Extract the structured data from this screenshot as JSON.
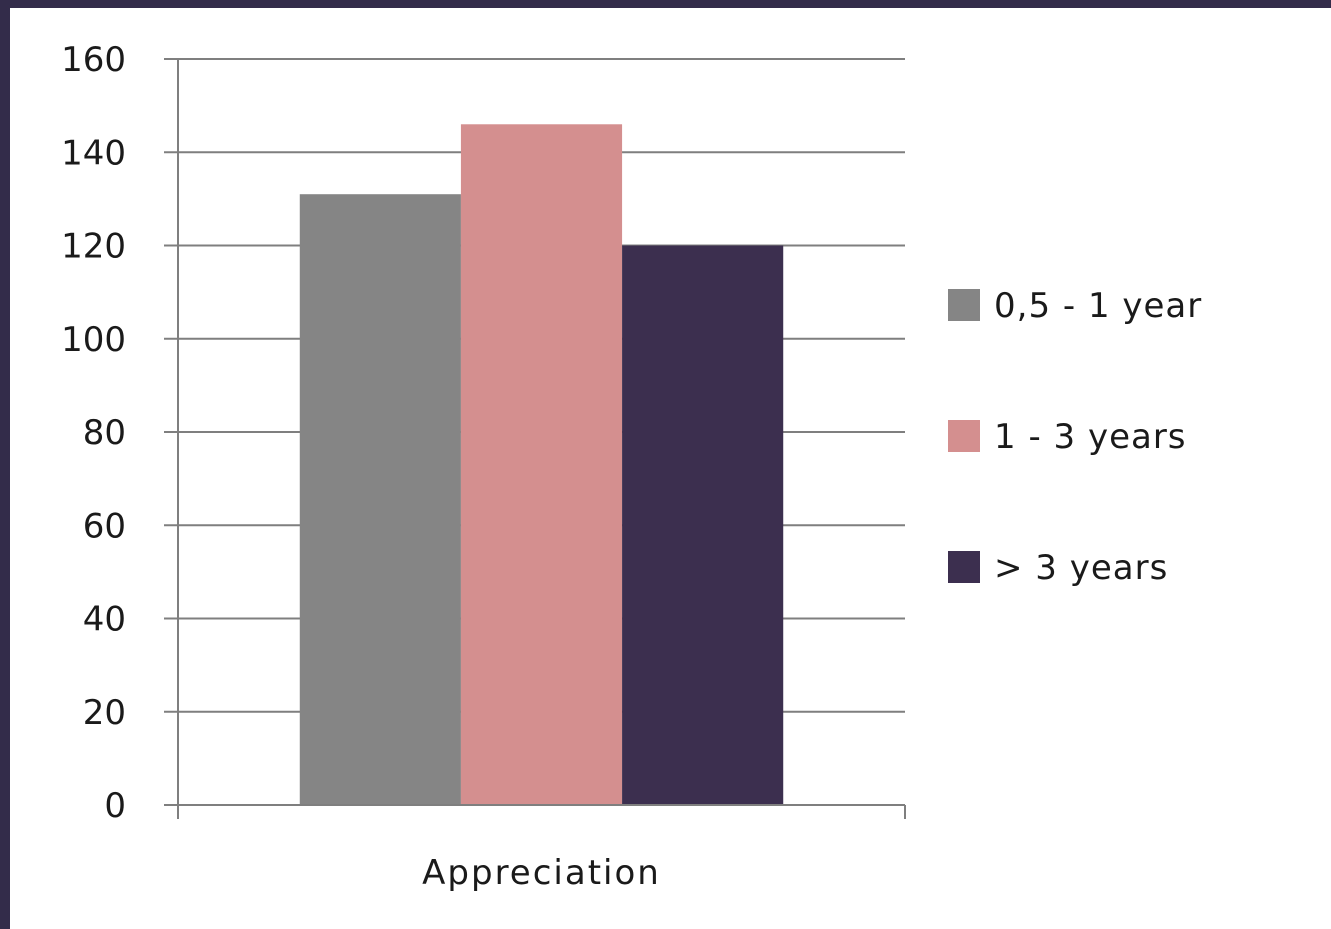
{
  "chart_data": {
    "type": "bar",
    "categories": [
      "Appreciation"
    ],
    "series": [
      {
        "name": "0,5 - 1 year",
        "values": [
          131
        ],
        "color": "#858585"
      },
      {
        "name": "1 - 3 years",
        "values": [
          146
        ],
        "color": "#d48f8f"
      },
      {
        "name": "> 3 years",
        "values": [
          120
        ],
        "color": "#3c2f4f"
      }
    ],
    "title": "",
    "xlabel": "",
    "ylabel": "",
    "ylim": [
      0,
      160
    ],
    "yticks": [
      "0",
      "20",
      "40",
      "60",
      "80",
      "100",
      "120",
      "140",
      "160"
    ],
    "grid": true,
    "legend_position": "right"
  },
  "colors": {
    "frame": "#332c4a",
    "background": "#ffffff",
    "gridline": "#7f7f7f"
  }
}
